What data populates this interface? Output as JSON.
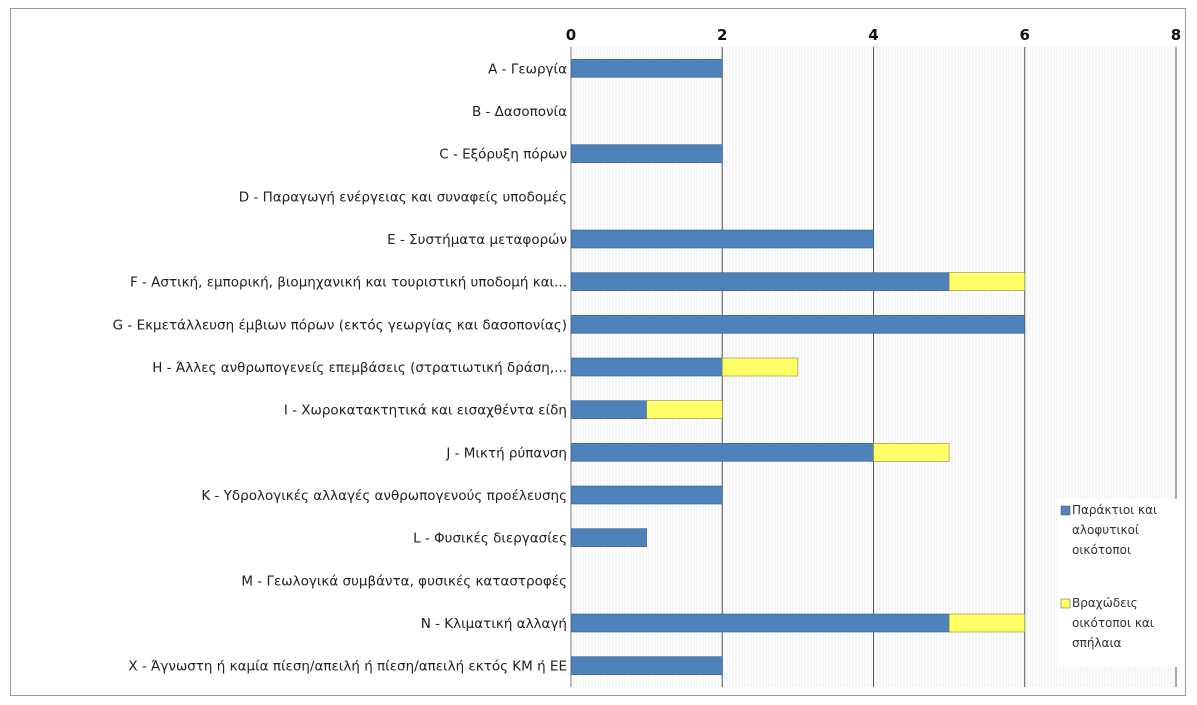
{
  "chart_data": {
    "type": "bar",
    "orientation": "horizontal",
    "stacked": true,
    "title": "",
    "xlabel": "",
    "ylabel": "",
    "xlim": [
      0,
      8
    ],
    "x_ticks": [
      "0",
      "2",
      "4",
      "6",
      "8"
    ],
    "x_axis_position": "top",
    "grid": true,
    "legend_position": "right",
    "categories": [
      "A - Γεωργία",
      "B - Δασοπονία",
      "C - Εξόρυξη πόρων",
      "D - Παραγωγή ενέργειας και συναφείς υποδομές",
      "E - Συστήματα μεταφορών",
      "F - Αστική, εμπορική, βιομηχανική και τουριστική υποδομή και...",
      "G - Εκμετάλλευση έμβιων πόρων (εκτός γεωργίας και δασοπονίας)",
      "H - Άλλες ανθρωπογενείς επεμβάσεις (στρατιωτική δράση,...",
      "I - Χωροκατακτητικά και εισαχθέντα είδη",
      "J - Μικτή ρύπανση",
      "K - Υδρολογικές αλλαγές ανθρωπογενούς προέλευσης",
      "L - Φυσικές διεργασίες",
      "M - Γεωλογικά συμβάντα, φυσικές καταστροφές",
      "N - Κλιματική αλλαγή",
      "X - Άγνωστη ή καμία πίεση/απειλή ή πίεση/απειλή εκτός ΚΜ ή ΕΕ"
    ],
    "series": [
      {
        "name": "Παράκτιοι και αλοφυτικοί οικότοποι",
        "legend_lines": [
          "Παράκτιοι και",
          "αλοφυτικοί",
          "οικότοποι"
        ],
        "color": "#4f81bd",
        "values": [
          2,
          0,
          2,
          0,
          4,
          5,
          6,
          2,
          1,
          4,
          2,
          1,
          0,
          5,
          2
        ]
      },
      {
        "name": "Βραχώδεις οικότοποι και σπήλαια",
        "legend_lines": [
          "Βραχώδεις",
          "οικότοποι και",
          "σπήλαια"
        ],
        "color": "#ffff66",
        "values": [
          0,
          0,
          0,
          0,
          0,
          1,
          0,
          1,
          1,
          1,
          0,
          0,
          0,
          1,
          0
        ]
      }
    ]
  }
}
